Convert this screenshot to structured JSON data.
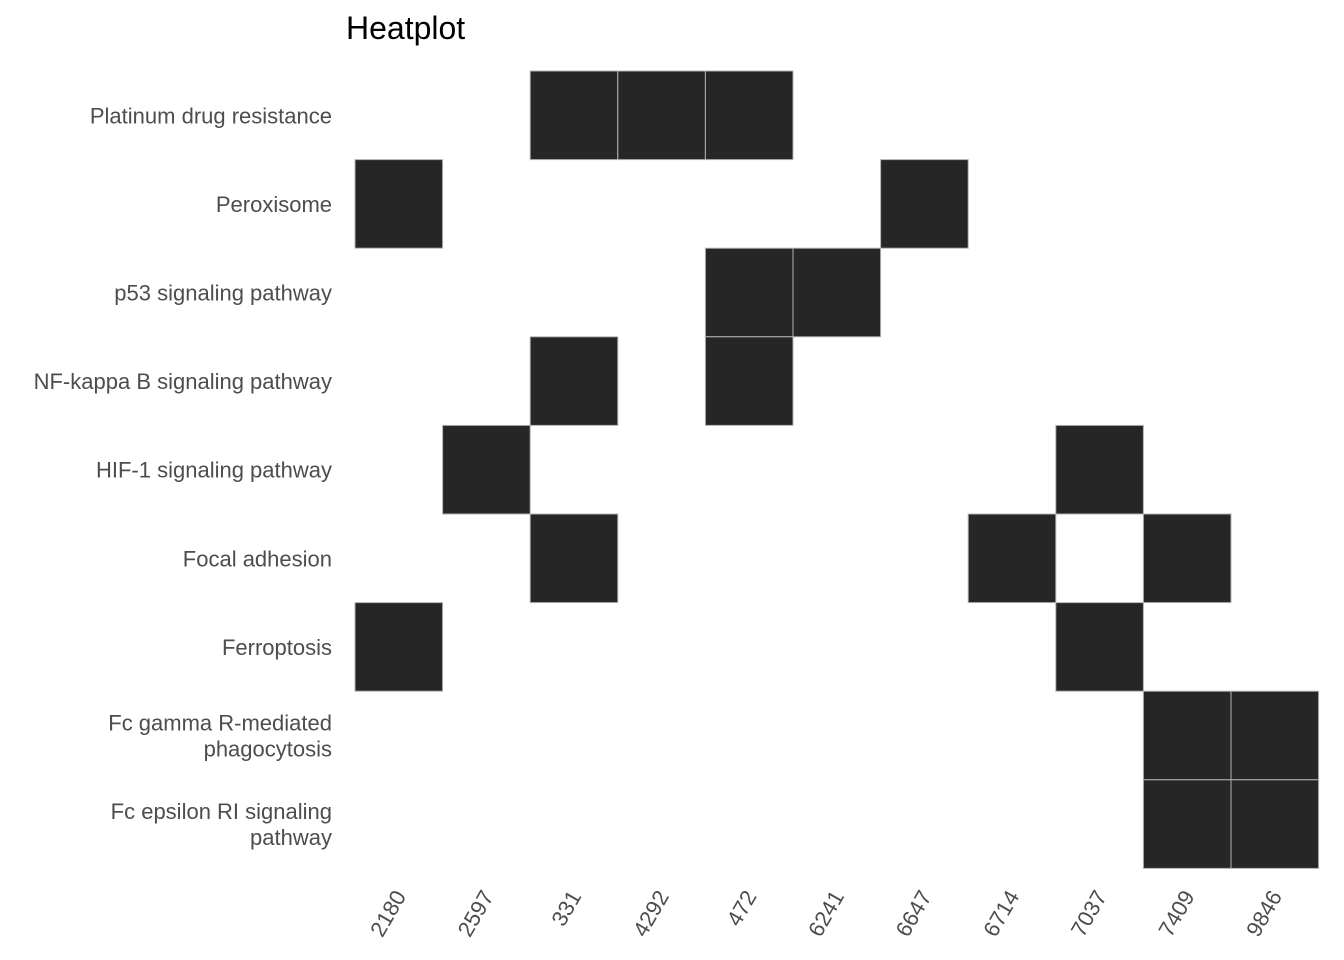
{
  "chart_data": {
    "type": "heatmap",
    "title": "Heatplot",
    "xlabel": "",
    "ylabel": "",
    "x": [
      "2180",
      "2597",
      "331",
      "4292",
      "472",
      "6241",
      "6647",
      "6714",
      "7037",
      "7409",
      "9846"
    ],
    "y": [
      [
        "Platinum drug resistance"
      ],
      [
        "Peroxisome"
      ],
      [
        "p53 signaling pathway"
      ],
      [
        "NF-kappa B signaling pathway"
      ],
      [
        "HIF-1 signaling pathway"
      ],
      [
        "Focal adhesion"
      ],
      [
        "Ferroptosis"
      ],
      [
        "Fc gamma R-mediated",
        "phagocytosis"
      ],
      [
        "Fc epsilon RI signaling",
        "pathway"
      ]
    ],
    "cells": [
      {
        "row": 0,
        "col": 2
      },
      {
        "row": 0,
        "col": 3
      },
      {
        "row": 0,
        "col": 4
      },
      {
        "row": 1,
        "col": 0
      },
      {
        "row": 1,
        "col": 6
      },
      {
        "row": 2,
        "col": 4
      },
      {
        "row": 2,
        "col": 5
      },
      {
        "row": 3,
        "col": 2
      },
      {
        "row": 3,
        "col": 4
      },
      {
        "row": 4,
        "col": 1
      },
      {
        "row": 4,
        "col": 8
      },
      {
        "row": 5,
        "col": 2
      },
      {
        "row": 5,
        "col": 7
      },
      {
        "row": 5,
        "col": 9
      },
      {
        "row": 6,
        "col": 0
      },
      {
        "row": 6,
        "col": 8
      },
      {
        "row": 7,
        "col": 9
      },
      {
        "row": 7,
        "col": 10
      },
      {
        "row": 8,
        "col": 9
      },
      {
        "row": 8,
        "col": 10
      }
    ],
    "fill_color": "#262626",
    "border_color": "#b3b3b3",
    "grid": false,
    "legend": "none"
  }
}
